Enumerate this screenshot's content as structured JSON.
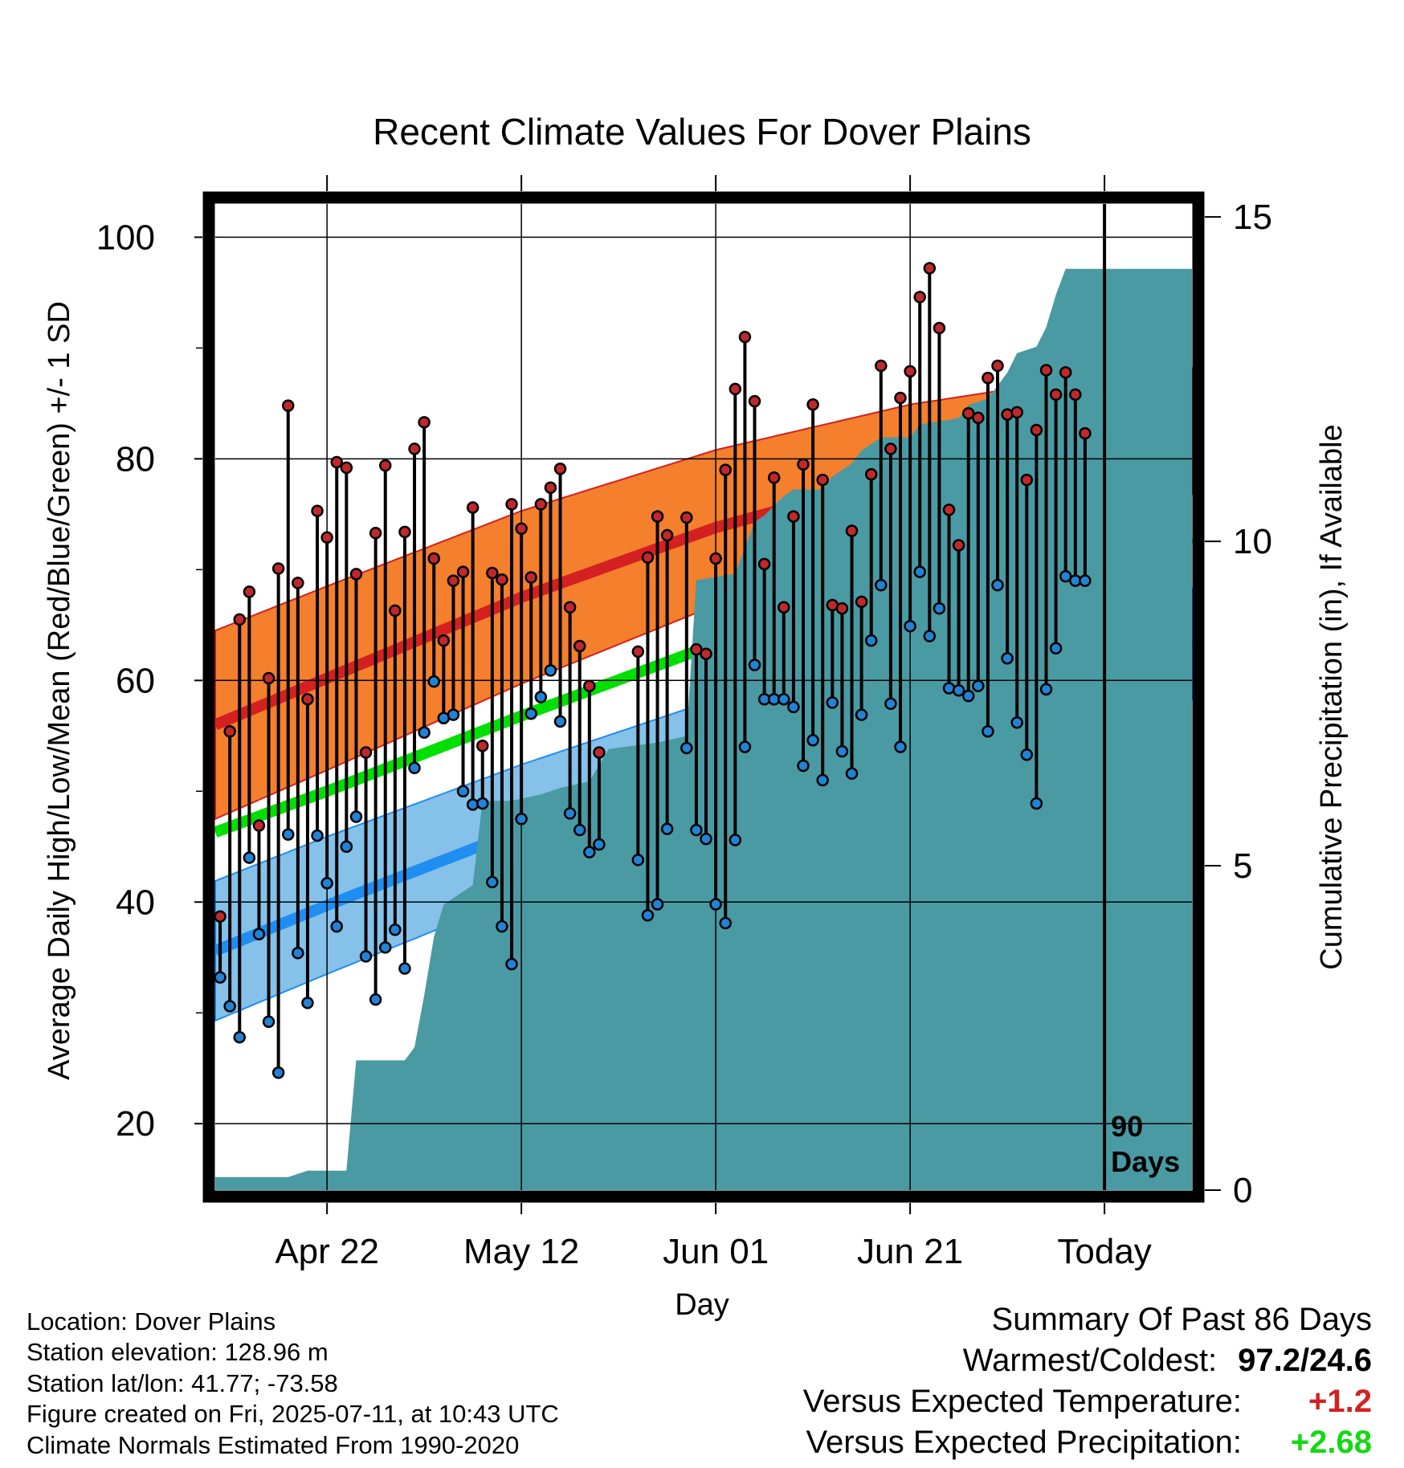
{
  "chart_data": {
    "type": "line",
    "title": "Recent Climate Values For Dover Plains",
    "xlabel": "Day",
    "ylabel": "Average Daily High/Low/Mean (Red/Blue/Green) +/- 1 SD",
    "y2label": "Cumulative Precipitation (in), If Available",
    "x_tick_labels": [
      "Apr 22",
      "May 12",
      "Jun 01",
      "Jun 21",
      "Today"
    ],
    "x_tick_day_offsets": [
      -80,
      -60,
      -40,
      -20,
      0
    ],
    "x_range_days": [
      -91.5,
      9
    ],
    "y_ticks": [
      20,
      40,
      60,
      80,
      100
    ],
    "ylim": [
      14,
      103
    ],
    "y2_ticks": [
      0,
      5,
      10,
      15
    ],
    "y2lim": [
      0,
      15.2
    ],
    "grid": true,
    "today_marker": "90\nDays",
    "normals_days": [
      -91.5,
      -80,
      -60,
      -40,
      -20,
      0,
      9
    ],
    "normal_high": [
      56,
      60.2,
      67.5,
      73.8,
      78.6,
      81.8,
      82.5
    ],
    "normal_high_sd": [
      8.5,
      8.3,
      7.8,
      7.0,
      6.3,
      5.8,
      5.7
    ],
    "normal_low": [
      35.6,
      39.7,
      46.5,
      52.8,
      58.0,
      62.3,
      63.3
    ],
    "normal_low_sd": [
      6.3,
      6.2,
      5.9,
      5.5,
      5.2,
      5.0,
      5.0
    ],
    "normal_mean": [
      46.3,
      50.0,
      56.8,
      63.3,
      68.2,
      72.1,
      72.9
    ],
    "observations": [
      {
        "day": -91,
        "high": 38.7,
        "low": 33.2
      },
      {
        "day": -90,
        "high": 55.4,
        "low": 30.6
      },
      {
        "day": -89,
        "high": 65.5,
        "low": 27.8
      },
      {
        "day": -88,
        "high": 68.0,
        "low": 44.0
      },
      {
        "day": -87,
        "high": 46.9,
        "low": 37.1
      },
      {
        "day": -86,
        "high": 60.2,
        "low": 29.2
      },
      {
        "day": -85,
        "high": 70.1,
        "low": 24.6
      },
      {
        "day": -84,
        "high": 84.8,
        "low": 46.1
      },
      {
        "day": -83,
        "high": 68.8,
        "low": 35.4
      },
      {
        "day": -82,
        "high": 58.3,
        "low": 30.9
      },
      {
        "day": -81,
        "high": 75.3,
        "low": 46.0
      },
      {
        "day": -80,
        "high": 72.9,
        "low": 41.7
      },
      {
        "day": -79,
        "high": 79.7,
        "low": 37.8
      },
      {
        "day": -78,
        "high": 79.2,
        "low": 45.0
      },
      {
        "day": -77,
        "high": 69.6,
        "low": 47.7
      },
      {
        "day": -76,
        "high": 53.5,
        "low": 35.1
      },
      {
        "day": -75,
        "high": 73.3,
        "low": 31.2
      },
      {
        "day": -74,
        "high": 79.4,
        "low": 35.9
      },
      {
        "day": -73,
        "high": 66.3,
        "low": 37.5
      },
      {
        "day": -72,
        "high": 73.4,
        "low": 34.0
      },
      {
        "day": -71,
        "high": 80.9,
        "low": 52.1
      },
      {
        "day": -70,
        "high": 83.3,
        "low": 55.3
      },
      {
        "day": -69,
        "high": 71.0,
        "low": 59.9
      },
      {
        "day": -68,
        "high": 63.6,
        "low": 56.6
      },
      {
        "day": -67,
        "high": 69.0,
        "low": 56.9
      },
      {
        "day": -66,
        "high": 69.8,
        "low": 50.0
      },
      {
        "day": -65,
        "high": 75.6,
        "low": 48.8
      },
      {
        "day": -64,
        "high": 54.1,
        "low": 48.9
      },
      {
        "day": -63,
        "high": 69.7,
        "low": 41.8
      },
      {
        "day": -62,
        "high": 69.1,
        "low": 37.8
      },
      {
        "day": -61,
        "high": 75.9,
        "low": 34.4
      },
      {
        "day": -60,
        "high": 73.7,
        "low": 47.5
      },
      {
        "day": -59,
        "high": 69.3,
        "low": 57.0
      },
      {
        "day": -58,
        "high": 75.9,
        "low": 58.5
      },
      {
        "day": -57,
        "high": 77.4,
        "low": 60.9
      },
      {
        "day": -56,
        "high": 79.1,
        "low": 56.3
      },
      {
        "day": -55,
        "high": 66.6,
        "low": 48.0
      },
      {
        "day": -54,
        "high": 63.1,
        "low": 46.5
      },
      {
        "day": -53,
        "high": 59.5,
        "low": 44.5
      },
      {
        "day": -52,
        "high": 53.5,
        "low": 45.2
      },
      {
        "day": -48,
        "high": 62.6,
        "low": 43.8
      },
      {
        "day": -47,
        "high": 71.1,
        "low": 38.8
      },
      {
        "day": -46,
        "high": 74.8,
        "low": 39.8
      },
      {
        "day": -45,
        "high": 73.1,
        "low": 46.6
      },
      {
        "day": -43,
        "high": 74.7,
        "low": 53.9
      },
      {
        "day": -42,
        "high": 62.8,
        "low": 46.5
      },
      {
        "day": -41,
        "high": 62.4,
        "low": 45.7
      },
      {
        "day": -40,
        "high": 71.0,
        "low": 39.8
      },
      {
        "day": -39,
        "high": 79.0,
        "low": 38.1
      },
      {
        "day": -38,
        "high": 86.3,
        "low": 45.6
      },
      {
        "day": -37,
        "high": 91.0,
        "low": 54.0
      },
      {
        "day": -36,
        "high": 85.2,
        "low": 61.4
      },
      {
        "day": -35,
        "high": 70.5,
        "low": 58.3
      },
      {
        "day": -34,
        "high": 78.3,
        "low": 58.3
      },
      {
        "day": -33,
        "high": 66.6,
        "low": 58.3
      },
      {
        "day": -32,
        "high": 74.8,
        "low": 57.6
      },
      {
        "day": -31,
        "high": 79.5,
        "low": 52.3
      },
      {
        "day": -30,
        "high": 84.9,
        "low": 54.6
      },
      {
        "day": -29,
        "high": 78.1,
        "low": 51.0
      },
      {
        "day": -28,
        "high": 66.8,
        "low": 58.0
      },
      {
        "day": -27,
        "high": 66.5,
        "low": 53.6
      },
      {
        "day": -26,
        "high": 73.5,
        "low": 51.6
      },
      {
        "day": -25,
        "high": 67.1,
        "low": 56.9
      },
      {
        "day": -24,
        "high": 78.6,
        "low": 63.6
      },
      {
        "day": -23,
        "high": 88.4,
        "low": 68.6
      },
      {
        "day": -22,
        "high": 80.9,
        "low": 57.9
      },
      {
        "day": -21,
        "high": 85.5,
        "low": 54.0
      },
      {
        "day": -20,
        "high": 87.9,
        "low": 64.9
      },
      {
        "day": -19,
        "high": 94.6,
        "low": 69.8
      },
      {
        "day": -18,
        "high": 97.2,
        "low": 64.0
      },
      {
        "day": -17,
        "high": 91.8,
        "low": 66.5
      },
      {
        "day": -16,
        "high": 75.4,
        "low": 59.3
      },
      {
        "day": -15,
        "high": 72.2,
        "low": 59.1
      },
      {
        "day": -14,
        "high": 84.1,
        "low": 58.6
      },
      {
        "day": -13,
        "high": 83.7,
        "low": 59.5
      },
      {
        "day": -12,
        "high": 87.3,
        "low": 55.4
      },
      {
        "day": -11,
        "high": 88.4,
        "low": 68.6
      },
      {
        "day": -10,
        "high": 84.0,
        "low": 62.0
      },
      {
        "day": -9,
        "high": 84.2,
        "low": 56.2
      },
      {
        "day": -8,
        "high": 78.1,
        "low": 53.3
      },
      {
        "day": -7,
        "high": 82.6,
        "low": 48.9
      },
      {
        "day": -6,
        "high": 88.0,
        "low": 59.2
      },
      {
        "day": -5,
        "high": 85.8,
        "low": 62.9
      },
      {
        "day": -4,
        "high": 87.8,
        "low": 69.4
      },
      {
        "day": -3,
        "high": 85.8,
        "low": 69.0
      },
      {
        "day": -2,
        "high": 82.3,
        "low": 69.0
      }
    ],
    "precip_cumulative": {
      "days": [
        -91.5,
        -84,
        -82,
        -78,
        -77,
        -72,
        -71,
        -70,
        -69,
        -68,
        -67,
        -65,
        -64,
        -61,
        -58,
        -56,
        -53,
        -51,
        -46,
        -43,
        -42,
        -38,
        -37,
        -36,
        -35,
        -33,
        -32,
        -29,
        -28,
        -27,
        -26,
        -25,
        -24,
        -23,
        -20,
        -19,
        -15,
        -14,
        -12,
        -11,
        -10,
        -9,
        -7,
        -6,
        -5,
        -4,
        9
      ],
      "values": [
        0.2,
        0.2,
        0.3,
        0.3,
        2.0,
        2.0,
        2.2,
        3.0,
        3.9,
        4.4,
        4.5,
        4.7,
        6.0,
        6.0,
        6.1,
        6.2,
        6.3,
        6.8,
        6.9,
        7.0,
        9.4,
        9.5,
        9.9,
        10.3,
        10.4,
        10.7,
        10.8,
        10.8,
        11.0,
        11.1,
        11.2,
        11.4,
        11.5,
        11.6,
        11.6,
        11.8,
        11.9,
        12.1,
        12.2,
        12.4,
        12.6,
        12.9,
        13.0,
        13.3,
        13.8,
        14.2,
        14.2
      ]
    },
    "colors": {
      "high_band": "#f47f2d",
      "high_line": "#d42020",
      "low_band": "#85c1e9",
      "low_line": "#1f8ef0",
      "mean_line": "#00e000",
      "precip": "#4a9aa3",
      "high_marker": "#c0282c",
      "low_marker": "#2183d6"
    }
  },
  "station_info": [
    "Location: Dover Plains",
    "Station elevation: 128.96 m",
    "Station lat/lon: 41.77; -73.58",
    "Figure created on Fri, 2025-07-11, at 10:43 UTC",
    "Climate Normals Estimated From 1990-2020"
  ],
  "summary": {
    "title": "Summary Of Past 86 Days",
    "warm_cold_label": "Warmest/Coldest:",
    "warm_cold_value": "97.2/24.6",
    "temp_label": "Versus Expected Temperature:",
    "temp_value": "+1.2",
    "temp_color": "#d42020",
    "precip_label": "Versus Expected Precipitation:",
    "precip_value": "+2.68",
    "precip_color": "#14d814"
  }
}
